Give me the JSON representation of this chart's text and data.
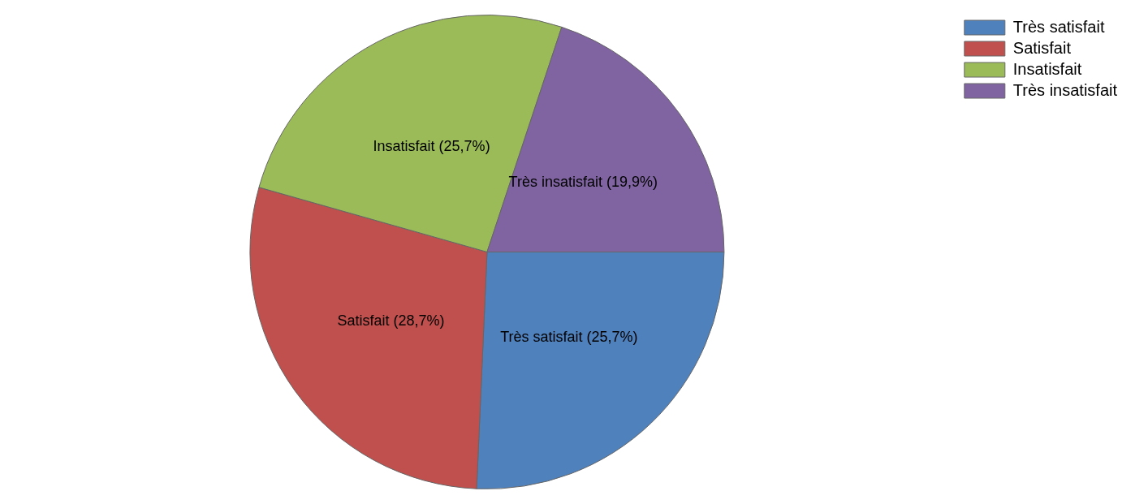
{
  "chart_data": {
    "type": "pie",
    "categories": [
      "Très satisfait",
      "Satisfait",
      "Insatisfait",
      "Très insatisfait"
    ],
    "values": [
      25.7,
      28.7,
      25.7,
      19.9
    ],
    "colors": [
      "#4f81bd",
      "#c0504d",
      "#9bbb59",
      "#8064a2"
    ],
    "value_labels": [
      "Très satisfait (25,7%)",
      "Satisfait (28,7%)",
      "Insatisfait (25,7%)",
      "Très insatisfait (19,9%)"
    ],
    "legend": "top right"
  }
}
